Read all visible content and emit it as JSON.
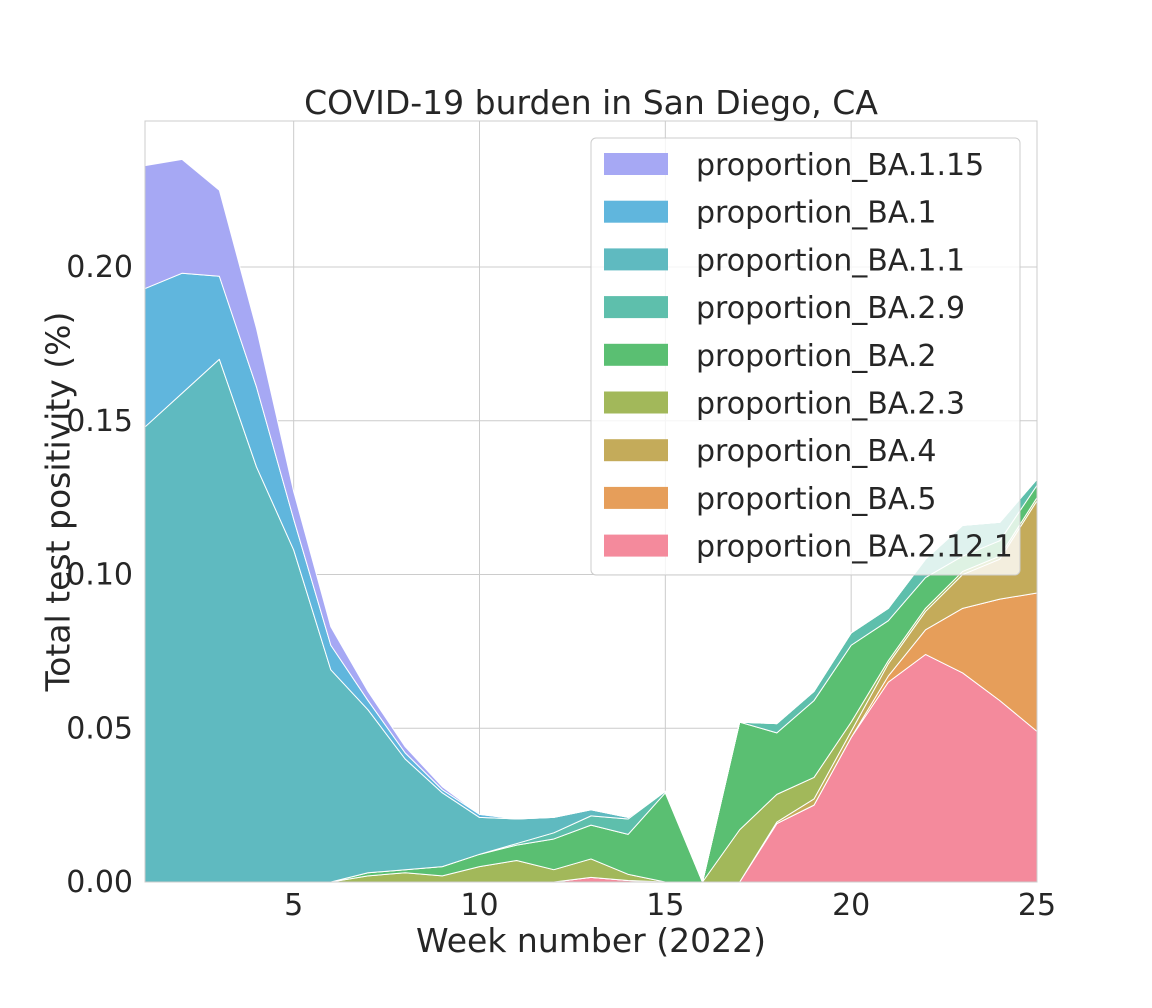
{
  "chart_data": {
    "type": "area",
    "stacked": true,
    "title": "COVID-19 burden in San Diego, CA",
    "xlabel": "Week number (2022)",
    "ylabel": "Total test positivity (%)",
    "xlim": [
      1,
      25
    ],
    "ylim": [
      0,
      0.2475
    ],
    "xticks": [
      "5",
      "10",
      "15",
      "20",
      "25"
    ],
    "yticks": [
      "0.00",
      "0.05",
      "0.10",
      "0.15",
      "0.20"
    ],
    "grid": true,
    "legend_position": "top-right",
    "x": [
      1,
      2,
      3,
      4,
      5,
      6,
      7,
      8,
      9,
      10,
      11,
      12,
      13,
      14,
      15,
      16,
      17,
      18,
      19,
      20,
      21,
      22,
      23,
      24,
      25
    ],
    "series": [
      {
        "name": "proportion_BA.2.12.1",
        "color": "#f48a9c",
        "values": [
          0,
          0,
          0,
          0,
          0,
          0,
          0,
          0,
          0,
          0,
          0,
          0,
          0.0015,
          0.0005,
          0,
          0,
          0,
          0.019,
          0.025,
          0.047,
          0.065,
          0.074,
          0.068,
          0.059,
          0.049
        ]
      },
      {
        "name": "proportion_BA.5",
        "color": "#e69e5a",
        "values": [
          0,
          0,
          0,
          0,
          0,
          0,
          0,
          0,
          0,
          0,
          0,
          0,
          0,
          0,
          0,
          0,
          0,
          0,
          0,
          0,
          0.002,
          0.008,
          0.021,
          0.033,
          0.045
        ]
      },
      {
        "name": "proportion_BA.4",
        "color": "#c4ab5a",
        "values": [
          0,
          0,
          0,
          0,
          0,
          0,
          0,
          0,
          0,
          0,
          0,
          0,
          0,
          0,
          0,
          0,
          0,
          0.0005,
          0.002,
          0.002,
          0.004,
          0.006,
          0.011,
          0.013,
          0.03
        ]
      },
      {
        "name": "proportion_BA.2.3",
        "color": "#a2b85a",
        "values": [
          0,
          0,
          0,
          0,
          0,
          0,
          0.002,
          0.003,
          0.002,
          0.005,
          0.007,
          0.004,
          0.006,
          0.002,
          0,
          0,
          0.017,
          0.009,
          0.007,
          0.003,
          0.001,
          0.001,
          0.001,
          0.001,
          0.001
        ]
      },
      {
        "name": "proportion_BA.2",
        "color": "#5abf72",
        "values": [
          0,
          0,
          0,
          0,
          0,
          0,
          0.001,
          0.001,
          0.003,
          0.004,
          0.005,
          0.01,
          0.011,
          0.013,
          0.029,
          0,
          0.035,
          0.02,
          0.025,
          0.025,
          0.013,
          0.01,
          0.005,
          0.005,
          0.004
        ]
      },
      {
        "name": "proportion_BA.2.9",
        "color": "#5ebfac",
        "values": [
          0,
          0,
          0,
          0,
          0,
          0,
          0,
          0,
          0,
          0,
          0.0005,
          0.002,
          0.003,
          0.005,
          0.0005,
          0,
          0,
          0.003,
          0.003,
          0.004,
          0.004,
          0.006,
          0.01,
          0.006,
          0.002
        ]
      },
      {
        "name": "proportion_BA.1.1",
        "color": "#5fbac0",
        "values": [
          0.148,
          0.159,
          0.17,
          0.135,
          0.108,
          0.069,
          0.053,
          0.036,
          0.024,
          0.012,
          0.008,
          0.005,
          0.002,
          0.0005,
          0,
          0,
          0,
          0,
          0,
          0,
          0,
          0,
          0,
          0,
          0
        ]
      },
      {
        "name": "proportion_BA.1",
        "color": "#60b6dd",
        "values": [
          0.045,
          0.039,
          0.027,
          0.026,
          0.01,
          0.008,
          0.003,
          0.002,
          0.001,
          0.001,
          0,
          0,
          0,
          0,
          0,
          0,
          0,
          0,
          0,
          0,
          0,
          0,
          0,
          0,
          0
        ]
      },
      {
        "name": "proportion_BA.1.15",
        "color": "#a6a8f4",
        "values": [
          0.04,
          0.037,
          0.028,
          0.019,
          0.009,
          0.006,
          0.003,
          0.002,
          0.001,
          0,
          0,
          0,
          0,
          0,
          0,
          0,
          0,
          0,
          0,
          0,
          0,
          0,
          0,
          0,
          0
        ]
      }
    ]
  }
}
